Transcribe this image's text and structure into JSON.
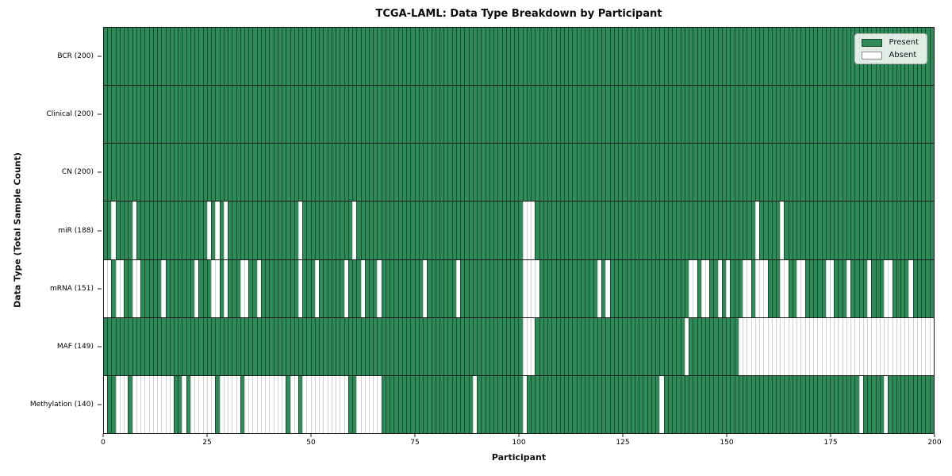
{
  "title": "TCGA-LAML: Data Type Breakdown by Participant",
  "xlabel": "Participant",
  "ylabel": "Data Type (Total Sample Count)",
  "legend": {
    "present_label": "Present",
    "absent_label": "Absent",
    "position": "upper right"
  },
  "colors": {
    "present": "#2e8b57",
    "absent": "#ffffff",
    "grid_edge": "#1a1a1a"
  },
  "x_ticks": [
    0,
    25,
    50,
    75,
    100,
    125,
    150,
    175,
    200
  ],
  "chart_data": {
    "type": "heatmap",
    "title": "TCGA-LAML: Data Type Breakdown by Participant",
    "xlabel": "Participant",
    "ylabel": "Data Type (Total Sample Count)",
    "x_range": [
      0,
      200
    ],
    "n_participants": 200,
    "legend_position": "upper right",
    "cell_states": [
      "Present",
      "Absent"
    ],
    "rows": [
      {
        "label": "BCR (200)",
        "data_type": "BCR",
        "present_count": 200,
        "absent_participants": []
      },
      {
        "label": "Clinical (200)",
        "data_type": "Clinical",
        "present_count": 200,
        "absent_participants": []
      },
      {
        "label": "CN (200)",
        "data_type": "CN",
        "present_count": 200,
        "absent_participants": []
      },
      {
        "label": "miR (188)",
        "data_type": "miR",
        "present_count": 188,
        "absent_participants": [
          2,
          7,
          25,
          27,
          29,
          47,
          60,
          101,
          102,
          103,
          157,
          163
        ]
      },
      {
        "label": "mRNA (151)",
        "data_type": "mRNA",
        "present_count": 151,
        "absent_participants": [
          0,
          1,
          3,
          4,
          7,
          8,
          14,
          22,
          26,
          27,
          29,
          33,
          34,
          37,
          47,
          51,
          58,
          62,
          66,
          77,
          85,
          101,
          102,
          103,
          104,
          119,
          121,
          141,
          142,
          144,
          145,
          148,
          150,
          154,
          155,
          157,
          158,
          159,
          163,
          164,
          167,
          168,
          174,
          175,
          179,
          184,
          188,
          189,
          194
        ]
      },
      {
        "label": "MAF (149)",
        "data_type": "MAF",
        "present_count": 149,
        "absent_participants": [
          101,
          102,
          103,
          140,
          153,
          154,
          155,
          156,
          157,
          158,
          159,
          160,
          161,
          162,
          163,
          164,
          165,
          166,
          167,
          168,
          169,
          170,
          171,
          172,
          173,
          174,
          175,
          176,
          177,
          178,
          179,
          180,
          181,
          182,
          183,
          184,
          185,
          186,
          187,
          188,
          189,
          190,
          191,
          192,
          193,
          194,
          195,
          196,
          197,
          198,
          199
        ]
      },
      {
        "label": "Methylation (140)",
        "data_type": "Methylation",
        "present_count": 140,
        "absent_participants": [
          0,
          3,
          4,
          5,
          7,
          8,
          9,
          10,
          11,
          12,
          13,
          14,
          15,
          16,
          19,
          21,
          22,
          23,
          24,
          25,
          26,
          28,
          29,
          30,
          31,
          32,
          34,
          35,
          36,
          37,
          38,
          39,
          40,
          41,
          42,
          43,
          45,
          46,
          48,
          49,
          50,
          51,
          52,
          53,
          54,
          55,
          56,
          57,
          58,
          61,
          62,
          63,
          64,
          65,
          66,
          89,
          101,
          134,
          182,
          188
        ]
      }
    ]
  }
}
